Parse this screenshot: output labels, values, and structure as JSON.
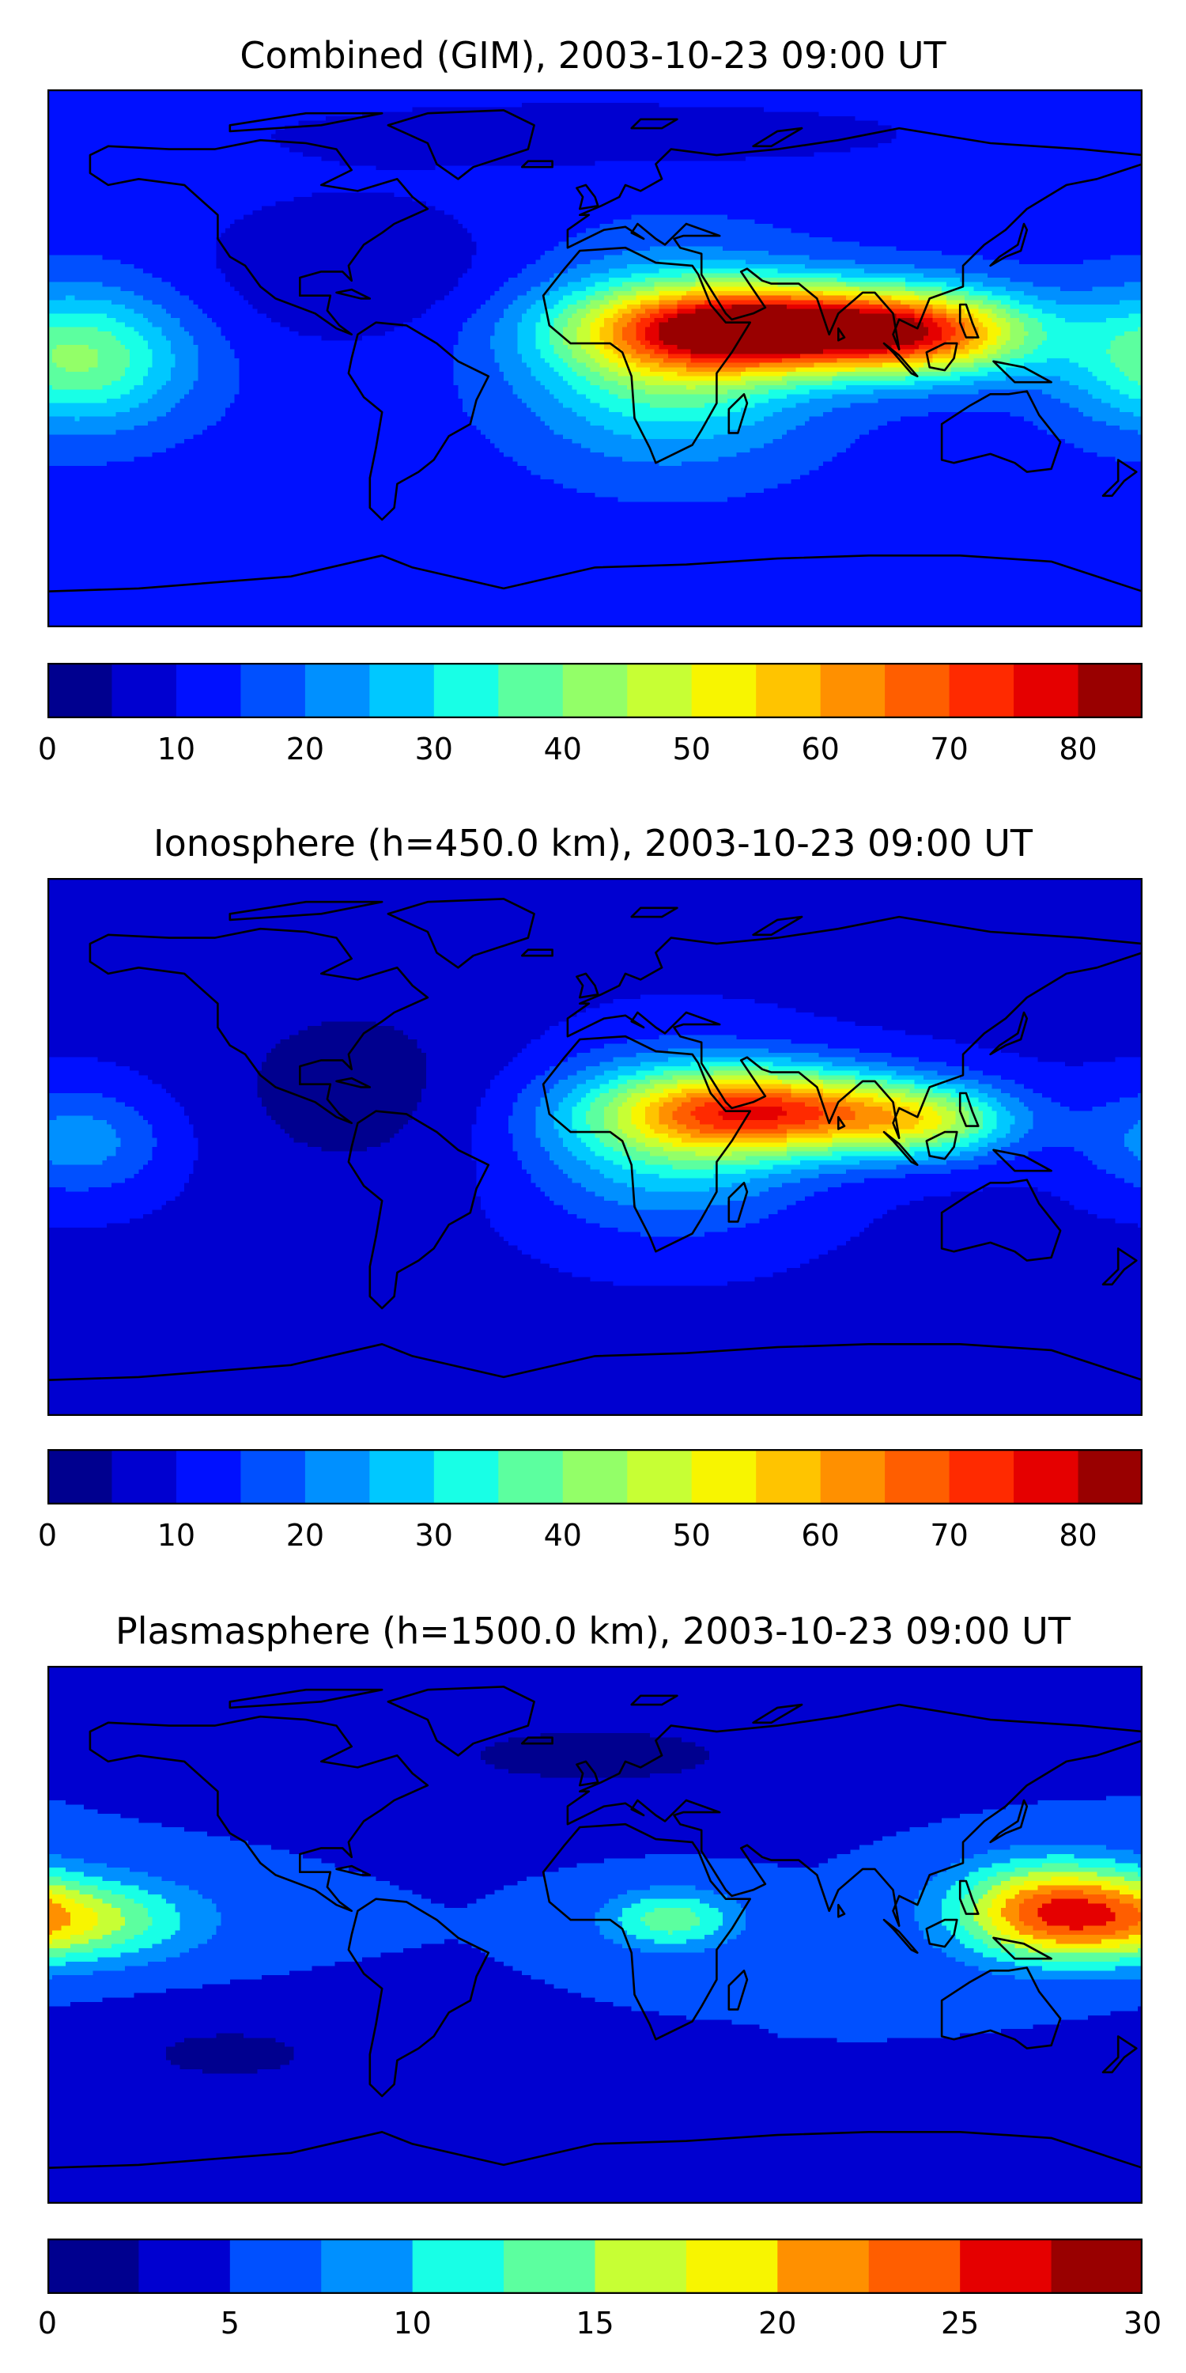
{
  "colors": [
    "#00008f",
    "#0000d0",
    "#0010ff",
    "#0050ff",
    "#0090ff",
    "#00c8ff",
    "#18ffe6",
    "#5cff9f",
    "#93ff68",
    "#c7ff34",
    "#f8f500",
    "#ffc400",
    "#ff9000",
    "#ff5e00",
    "#ff2a00",
    "#e50000",
    "#990000"
  ],
  "panels": [
    {
      "title": "Combined (GIM), 2003-10-23 09:00 UT",
      "colorbar": {
        "min": 0,
        "max": 85,
        "step": 5,
        "ticks": [
          {
            "value": 0,
            "label": "0"
          },
          {
            "value": 10,
            "label": "10"
          },
          {
            "value": 20,
            "label": "20"
          },
          {
            "value": 30,
            "label": "30"
          },
          {
            "value": 40,
            "label": "40"
          },
          {
            "value": 50,
            "label": "50"
          },
          {
            "value": 60,
            "label": "60"
          },
          {
            "value": 70,
            "label": "70"
          },
          {
            "value": 80,
            "label": "80"
          }
        ]
      },
      "field": {
        "base": 13,
        "blobs": [
          {
            "lon": 60,
            "lat": 10,
            "rlon": 55,
            "rlat": 14,
            "amp": 70
          },
          {
            "lon": 25,
            "lat": 0,
            "rlon": 45,
            "rlat": 30,
            "amp": 28
          },
          {
            "lon": 110,
            "lat": 8,
            "rlon": 35,
            "rlat": 14,
            "amp": 36
          },
          {
            "lon": -170,
            "lat": 0,
            "rlon": 35,
            "rlat": 22,
            "amp": 28
          },
          {
            "lon": -80,
            "lat": 30,
            "rlon": 50,
            "rlat": 25,
            "amp": -8
          },
          {
            "lon": 0,
            "lat": 75,
            "rlon": 120,
            "rlat": 12,
            "amp": -6
          }
        ]
      }
    },
    {
      "title": "Ionosphere  (h=450.0 km), 2003-10-23 09:00 UT",
      "colorbar": {
        "min": 0,
        "max": 85,
        "step": 5,
        "ticks": [
          {
            "value": 0,
            "label": "0"
          },
          {
            "value": 10,
            "label": "10"
          },
          {
            "value": 20,
            "label": "20"
          },
          {
            "value": 30,
            "label": "30"
          },
          {
            "value": 40,
            "label": "40"
          },
          {
            "value": 50,
            "label": "50"
          },
          {
            "value": 60,
            "label": "60"
          },
          {
            "value": 70,
            "label": "70"
          },
          {
            "value": 80,
            "label": "80"
          }
        ]
      },
      "field": {
        "base": 9,
        "blobs": [
          {
            "lon": 58,
            "lat": 12,
            "rlon": 50,
            "rlat": 14,
            "amp": 55
          },
          {
            "lon": 25,
            "lat": 2,
            "rlon": 45,
            "rlat": 28,
            "amp": 22
          },
          {
            "lon": 110,
            "lat": 8,
            "rlon": 30,
            "rlat": 12,
            "amp": 26
          },
          {
            "lon": -170,
            "lat": 2,
            "rlon": 30,
            "rlat": 18,
            "amp": 14
          },
          {
            "lon": -80,
            "lat": 20,
            "rlon": 50,
            "rlat": 35,
            "amp": -6
          }
        ]
      }
    },
    {
      "title": "Plasmasphere (h=1500.0 km), 2003-10-23 09:00 UT",
      "colorbar": {
        "min": 0,
        "max": 30,
        "step": 2.5,
        "ticks": [
          {
            "value": 0,
            "label": "0"
          },
          {
            "value": 5,
            "label": "5"
          },
          {
            "value": 10,
            "label": "10"
          },
          {
            "value": 15,
            "label": "15"
          },
          {
            "value": 20,
            "label": "20"
          },
          {
            "value": 25,
            "label": "25"
          },
          {
            "value": 30,
            "label": "30"
          }
        ]
      },
      "field": {
        "base": 5,
        "blobs": [
          {
            "lon": -172,
            "lat": 5,
            "rlon": 40,
            "rlat": 14,
            "amp": 11
          },
          {
            "lon": 25,
            "lat": 5,
            "rlon": 22,
            "rlat": 10,
            "amp": 9
          },
          {
            "lon": 150,
            "lat": 8,
            "rlon": 32,
            "rlat": 16,
            "amp": 17
          },
          {
            "lon": -120,
            "lat": -40,
            "rlon": 50,
            "rlat": 15,
            "amp": -3
          },
          {
            "lon": 0,
            "lat": 60,
            "rlon": 90,
            "rlat": 18,
            "amp": -3
          }
        ]
      }
    }
  ]
}
